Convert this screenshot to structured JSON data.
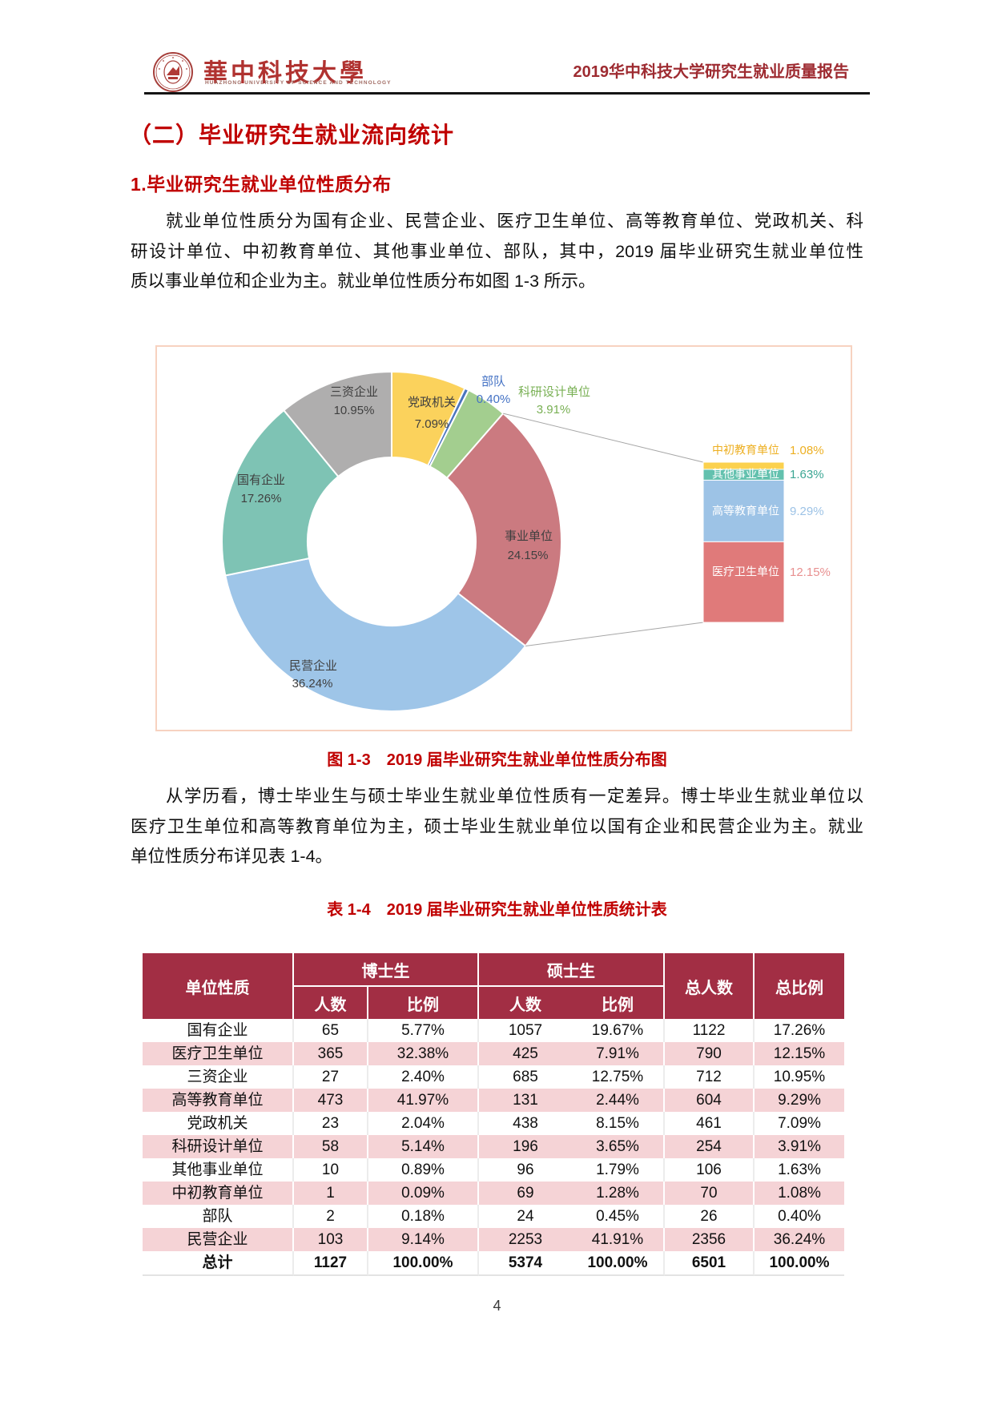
{
  "header": {
    "university_cn": "華中科技大學",
    "university_en": "HUAZHONG UNIVERSITY OF SCIENCE AND TECHNOLOGY",
    "report_title": "2019华中科技大学研究生就业质量报告"
  },
  "section": {
    "h1": "（二）毕业研究生就业流向统计",
    "h2": "1.毕业研究生就业单位性质分布"
  },
  "paragraph1": {
    "line1": "就业单位性质分为国有企业、民营企业、医疗卫生单位、高等教育单位、党政机关、科",
    "line2": "研设计单位、中初教育单位、其他事业单位、部队，其中，2019 届毕业研究生就业单位性",
    "line3": "质以事业单位和企业为主。就业单位性质分布如图 1-3 所示。"
  },
  "figure_caption": "图 1-3　2019 届毕业研究生就业单位性质分布图",
  "paragraph2": {
    "line1": "从学历看，博士毕业生与硕士毕业生就业单位性质有一定差异。博士毕业生就业单位以",
    "line2": "医疗卫生单位和高等教育单位为主，硕士毕业生就业单位以国有企业和民营企业为主。就业",
    "line3": "单位性质分布详见表 1-4。"
  },
  "table_caption": "表 1-4　2019 届毕业研究生就业单位性质统计表",
  "chart_data": {
    "type": "pie",
    "subtype": "donut-with-breakout-bar",
    "title": "2019届毕业研究生就业单位性质分布",
    "legend_position": "none",
    "slices": [
      {
        "label": "党政机关",
        "value": 7.09,
        "display": "7.09%",
        "color": "#FBD25C",
        "label_color": "#3f3f3f"
      },
      {
        "label": "部队",
        "value": 0.4,
        "display": "0.40%",
        "color": "#4A74BE",
        "label_color": "#4472C4"
      },
      {
        "label": "科研设计单位",
        "value": 3.91,
        "display": "3.91%",
        "color": "#A3CE8F",
        "label_color": "#79B054"
      },
      {
        "label": "事业单位",
        "value": 24.15,
        "display": "24.15%",
        "color": "#CB7A80",
        "label_color": "#3f3f3f"
      },
      {
        "label": "民营企业",
        "value": 36.24,
        "display": "36.24%",
        "color": "#9EC5E8",
        "label_color": "#3f3f3f"
      },
      {
        "label": "国有企业",
        "value": 17.26,
        "display": "17.26%",
        "color": "#7EC3B4",
        "label_color": "#3f3f3f"
      },
      {
        "label": "三资企业",
        "value": 10.95,
        "display": "10.95%",
        "color": "#AFAEAE",
        "label_color": "#3f3f3f"
      }
    ],
    "breakout": {
      "parent": "事业单位",
      "segments": [
        {
          "label": "中初教育单位",
          "value": 1.08,
          "display": "1.08%",
          "color": "#FBD14E",
          "name_color": "#EDAF21",
          "pct_color": "#EDAF21"
        },
        {
          "label": "其他事业单位",
          "value": 1.63,
          "display": "1.63%",
          "color": "#63C1AE",
          "name_color": "#ffffff",
          "pct_color": "#3BA693"
        },
        {
          "label": "高等教育单位",
          "value": 9.29,
          "display": "9.29%",
          "color": "#9DC3E6",
          "name_color": "#ffffff",
          "pct_color": "#9DC3E6"
        },
        {
          "label": "医疗卫生单位",
          "value": 12.15,
          "display": "12.15%",
          "color": "#E07A7A",
          "name_color": "#ffffff",
          "pct_color": "#E89090"
        }
      ]
    }
  },
  "table": {
    "group_headers": {
      "unit": "单位性质",
      "phd": "博士生",
      "msc": "硕士生",
      "total_count": "总人数",
      "total_ratio": "总比例"
    },
    "sub_headers": {
      "count": "人数",
      "ratio": "比例"
    },
    "rows": [
      [
        "国有企业",
        "65",
        "5.77%",
        "1057",
        "19.67%",
        "1122",
        "17.26%"
      ],
      [
        "医疗卫生单位",
        "365",
        "32.38%",
        "425",
        "7.91%",
        "790",
        "12.15%"
      ],
      [
        "三资企业",
        "27",
        "2.40%",
        "685",
        "12.75%",
        "712",
        "10.95%"
      ],
      [
        "高等教育单位",
        "473",
        "41.97%",
        "131",
        "2.44%",
        "604",
        "9.29%"
      ],
      [
        "党政机关",
        "23",
        "2.04%",
        "438",
        "8.15%",
        "461",
        "7.09%"
      ],
      [
        "科研设计单位",
        "58",
        "5.14%",
        "196",
        "3.65%",
        "254",
        "3.91%"
      ],
      [
        "其他事业单位",
        "10",
        "0.89%",
        "96",
        "1.79%",
        "106",
        "1.63%"
      ],
      [
        "中初教育单位",
        "1",
        "0.09%",
        "69",
        "1.28%",
        "70",
        "1.08%"
      ],
      [
        "部队",
        "2",
        "0.18%",
        "24",
        "0.45%",
        "26",
        "0.40%"
      ],
      [
        "民营企业",
        "103",
        "9.14%",
        "2253",
        "41.91%",
        "2356",
        "36.24%"
      ]
    ],
    "total_row": [
      "总计",
      "1127",
      "100.00%",
      "5374",
      "100.00%",
      "6501",
      "100.00%"
    ]
  },
  "page_number": "4",
  "colors": {
    "heading_red": "#C00000",
    "header_title_red": "#9E2B31",
    "table_header_bg": "#A22E44",
    "table_row_pink": "#F5D3D6",
    "chart_border": "#F7D2C0"
  }
}
